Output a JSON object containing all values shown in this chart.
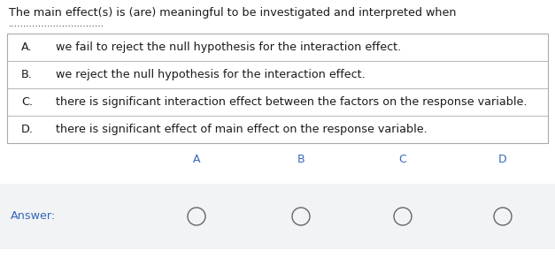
{
  "title_line1": "The main effect(s) is (are) meaningful to be investigated and interpreted when",
  "title_line2": "................................",
  "options": [
    {
      "label": "A.",
      "text": "we fail to reject the null hypothesis for the interaction effect."
    },
    {
      "label": "B.",
      "text": "we reject the null hypothesis for the interaction effect."
    },
    {
      "label": "C.",
      "text": "there is significant interaction effect between the factors on the response variable."
    },
    {
      "label": "D.",
      "text": "there is significant effect of main effect on the response variable."
    }
  ],
  "choice_labels": [
    "A",
    "B",
    "C",
    "D"
  ],
  "answer_label": "Answer:",
  "bg_color": "#ffffff",
  "table_bg": "#ffffff",
  "answer_bg": "#f2f3f5",
  "border_color": "#aaaaaa",
  "text_color": "#1a1a1a",
  "choice_color": "#3366bb",
  "answer_text_color": "#3366bb",
  "circle_color": "#666666",
  "title_fontsize": 9.2,
  "option_fontsize": 9.2,
  "choice_fontsize": 9.0,
  "answer_fontsize": 9.2,
  "dots_fontsize": 7.5
}
